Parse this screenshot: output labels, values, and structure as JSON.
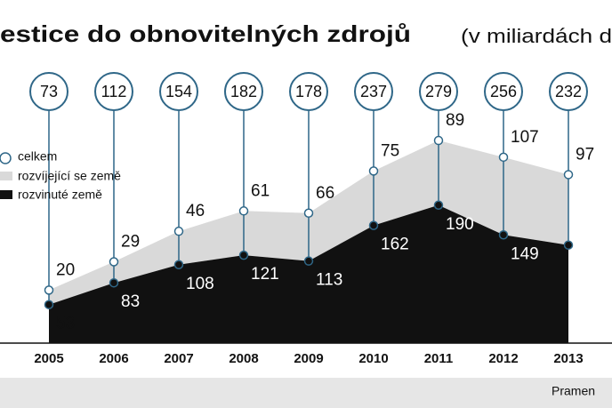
{
  "chart_data": {
    "type": "stacked-area",
    "title": "estice do obnovitelných zdrojů",
    "subtitle": "(v miliardách d",
    "source": "Pramen",
    "categories": [
      "2005",
      "2006",
      "2007",
      "2008",
      "2009",
      "2010",
      "2011",
      "2012",
      "2013"
    ],
    "series": [
      {
        "name": "celkem",
        "color": "#2f6788",
        "values": [
          73,
          112,
          154,
          182,
          178,
          237,
          279,
          256,
          232
        ]
      },
      {
        "name": "rozvíjející se země",
        "color": "#d9d9d9",
        "values": [
          20,
          29,
          46,
          61,
          66,
          75,
          89,
          107,
          97
        ]
      },
      {
        "name": "rozvinuté země",
        "color": "#111111",
        "values": [
          53,
          83,
          108,
          121,
          113,
          162,
          190,
          149,
          135
        ]
      }
    ]
  }
}
